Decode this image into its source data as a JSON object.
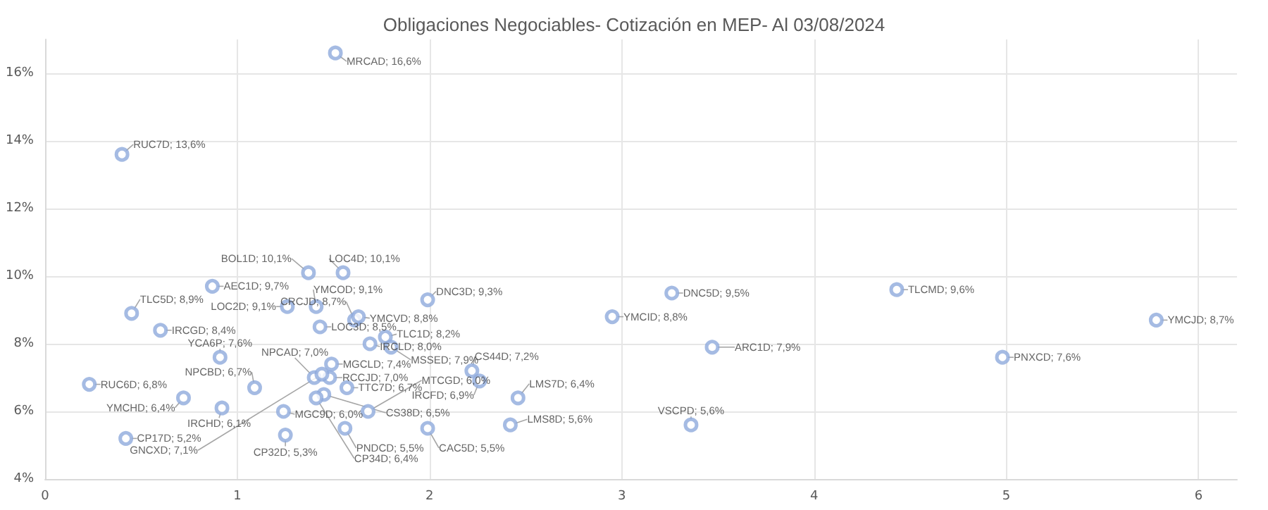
{
  "chart_data": {
    "type": "scatter",
    "title": "Obligaciones Negociables- Cotización en MEP- Al 03/08/2024",
    "x": [
      1.51,
      0.4,
      1.37,
      1.55,
      0.87,
      1.41,
      1.26,
      1.61,
      1.63,
      0.45,
      0.6,
      0.91,
      1.43,
      1.77,
      1.69,
      1.8,
      1.99,
      2.95,
      3.26,
      3.47,
      4.43,
      4.98,
      5.78,
      3.36,
      2.42,
      2.46,
      2.22,
      2.26,
      1.68,
      1.45,
      1.99,
      1.56,
      1.57,
      1.49,
      1.48,
      1.4,
      1.44,
      1.41,
      1.24,
      0.92,
      1.25,
      1.09,
      0.23,
      0.72,
      0.42
    ],
    "values": [
      16.6,
      13.6,
      10.1,
      10.1,
      9.7,
      9.1,
      9.1,
      8.7,
      8.8,
      8.9,
      8.4,
      7.6,
      8.5,
      8.2,
      8.0,
      7.9,
      9.3,
      8.8,
      9.5,
      7.9,
      9.6,
      7.6,
      8.7,
      5.6,
      5.6,
      6.4,
      7.2,
      6.9,
      6.0,
      6.5,
      5.5,
      5.5,
      6.7,
      7.4,
      7.0,
      7.0,
      7.1,
      6.4,
      6.0,
      6.1,
      5.3,
      6.7,
      6.8,
      6.4,
      5.2
    ],
    "value_labels": [
      "MRCAD; 16,6%",
      "RUC7D; 13,6%",
      "BOL1D; 10,1%",
      "LOC4D; 10,1%",
      "AEC1D; 9,7%",
      "YMCOD; 9,1%",
      "LOC2D; 9,1%",
      "CRCJD; 8,7%",
      "YMCVD; 8,8%",
      "TLC5D; 8,9%",
      "IRCGD; 8,4%",
      "YCA6P; 7,6%",
      "LOC3D; 8,5%",
      "TLC1D; 8,2%",
      "IRCLD; 8,0%",
      "MSSED; 7,9%",
      "DNC3D; 9,3%",
      "YMCID; 8,8%",
      "DNC5D; 9,5%",
      "ARC1D; 7,9%",
      "TLCMD; 9,6%",
      "PNXCD; 7,6%",
      "YMCJD; 8,7%",
      "VSCPD; 5,6%",
      "LMS8D; 5,6%",
      "LMS7D; 6,4%",
      "CS44D; 7,2%",
      "IRCFD; 6,9%",
      "MTCGD; 6,0%",
      "CS38D; 6,5%",
      "CAC5D; 5,5%",
      "PNDCD; 5,5%",
      "TTC7D; 6,7%",
      "MGCLD; 7,4%",
      "RCCJD; 7,0%",
      "NPCAD; 7,0%",
      "GNCXD; 7,1%",
      "CP34D; 6,4%",
      "MGC9D; 6,0%",
      "IRCHD; 6,1%",
      "CP32D; 5,3%",
      "NPCBD; 6,7%",
      "RUC6D; 6,8%",
      "YMCHD; 6,4%",
      "CP17D; 5,2%"
    ],
    "color": "#8faadc",
    "marker": "circle",
    "xlim": [
      0,
      6.2
    ],
    "xticks": [
      0,
      1,
      2,
      3,
      4,
      5,
      6
    ],
    "ylim": [
      4,
      17
    ],
    "yticks": [
      {
        "value": 4,
        "label": "4%"
      },
      {
        "value": 6,
        "label": "6%"
      },
      {
        "value": 8,
        "label": "8%"
      },
      {
        "value": 10,
        "label": "10%"
      },
      {
        "value": 12,
        "label": "12%"
      },
      {
        "value": 14,
        "label": "14%"
      },
      {
        "value": 16,
        "label": "16%"
      }
    ],
    "grid": true
  }
}
